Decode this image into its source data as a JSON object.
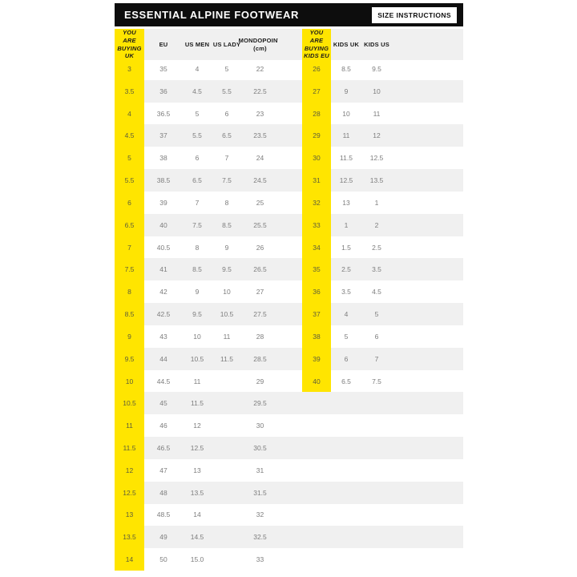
{
  "header": {
    "title": "ESSENTIAL ALPINE FOOTWEAR",
    "button_label": "SIZE INSTRUCTIONS"
  },
  "table": {
    "adult_header": {
      "uk": "YOU ARE BUYING UK",
      "eu": "EU",
      "us_men": "US MEN",
      "us_lady": "US LADY",
      "mondopoint": "MONDOPOINT",
      "mondopoint_unit": "(cm)"
    },
    "kids_header": {
      "kids_eu": "YOU ARE BUYING KIDS EU",
      "kids_uk": "KIDS UK",
      "kids_us": "KIDS US"
    },
    "rows": [
      {
        "uk": "3",
        "eu": "35",
        "us_men": "4",
        "us_lady": "5",
        "mondo": "22",
        "kids_eu": "26",
        "kids_uk": "8.5",
        "kids_us": "9.5"
      },
      {
        "uk": "3.5",
        "eu": "36",
        "us_men": "4.5",
        "us_lady": "5.5",
        "mondo": "22.5",
        "kids_eu": "27",
        "kids_uk": "9",
        "kids_us": "10"
      },
      {
        "uk": "4",
        "eu": "36.5",
        "us_men": "5",
        "us_lady": "6",
        "mondo": "23",
        "kids_eu": "28",
        "kids_uk": "10",
        "kids_us": "11"
      },
      {
        "uk": "4.5",
        "eu": "37",
        "us_men": "5.5",
        "us_lady": "6.5",
        "mondo": "23.5",
        "kids_eu": "29",
        "kids_uk": "11",
        "kids_us": "12"
      },
      {
        "uk": "5",
        "eu": "38",
        "us_men": "6",
        "us_lady": "7",
        "mondo": "24",
        "kids_eu": "30",
        "kids_uk": "11.5",
        "kids_us": "12.5"
      },
      {
        "uk": "5.5",
        "eu": "38.5",
        "us_men": "6.5",
        "us_lady": "7.5",
        "mondo": "24.5",
        "kids_eu": "31",
        "kids_uk": "12.5",
        "kids_us": "13.5"
      },
      {
        "uk": "6",
        "eu": "39",
        "us_men": "7",
        "us_lady": "8",
        "mondo": "25",
        "kids_eu": "32",
        "kids_uk": "13",
        "kids_us": "1"
      },
      {
        "uk": "6.5",
        "eu": "40",
        "us_men": "7.5",
        "us_lady": "8.5",
        "mondo": "25.5",
        "kids_eu": "33",
        "kids_uk": "1",
        "kids_us": "2"
      },
      {
        "uk": "7",
        "eu": "40.5",
        "us_men": "8",
        "us_lady": "9",
        "mondo": "26",
        "kids_eu": "34",
        "kids_uk": "1.5",
        "kids_us": "2.5"
      },
      {
        "uk": "7.5",
        "eu": "41",
        "us_men": "8.5",
        "us_lady": "9.5",
        "mondo": "26.5",
        "kids_eu": "35",
        "kids_uk": "2.5",
        "kids_us": "3.5"
      },
      {
        "uk": "8",
        "eu": "42",
        "us_men": "9",
        "us_lady": "10",
        "mondo": "27",
        "kids_eu": "36",
        "kids_uk": "3.5",
        "kids_us": "4.5"
      },
      {
        "uk": "8.5",
        "eu": "42.5",
        "us_men": "9.5",
        "us_lady": "10.5",
        "mondo": "27.5",
        "kids_eu": "37",
        "kids_uk": "4",
        "kids_us": "5"
      },
      {
        "uk": "9",
        "eu": "43",
        "us_men": "10",
        "us_lady": "11",
        "mondo": "28",
        "kids_eu": "38",
        "kids_uk": "5",
        "kids_us": "6"
      },
      {
        "uk": "9.5",
        "eu": "44",
        "us_men": "10.5",
        "us_lady": "11.5",
        "mondo": "28.5",
        "kids_eu": "39",
        "kids_uk": "6",
        "kids_us": "7"
      },
      {
        "uk": "10",
        "eu": "44.5",
        "us_men": "11",
        "us_lady": "",
        "mondo": "29",
        "kids_eu": "40",
        "kids_uk": "6.5",
        "kids_us": "7.5"
      },
      {
        "uk": "10.5",
        "eu": "45",
        "us_men": "11.5",
        "us_lady": "",
        "mondo": "29.5",
        "kids_eu": "",
        "kids_uk": "",
        "kids_us": ""
      },
      {
        "uk": "11",
        "eu": "46",
        "us_men": "12",
        "us_lady": "",
        "mondo": "30",
        "kids_eu": "",
        "kids_uk": "",
        "kids_us": ""
      },
      {
        "uk": "11.5",
        "eu": "46.5",
        "us_men": "12.5",
        "us_lady": "",
        "mondo": "30.5",
        "kids_eu": "",
        "kids_uk": "",
        "kids_us": ""
      },
      {
        "uk": "12",
        "eu": "47",
        "us_men": "13",
        "us_lady": "",
        "mondo": "31",
        "kids_eu": "",
        "kids_uk": "",
        "kids_us": ""
      },
      {
        "uk": "12.5",
        "eu": "48",
        "us_men": "13.5",
        "us_lady": "",
        "mondo": "31.5",
        "kids_eu": "",
        "kids_uk": "",
        "kids_us": ""
      },
      {
        "uk": "13",
        "eu": "48.5",
        "us_men": "14",
        "us_lady": "",
        "mondo": "32",
        "kids_eu": "",
        "kids_uk": "",
        "kids_us": ""
      },
      {
        "uk": "13.5",
        "eu": "49",
        "us_men": "14.5",
        "us_lady": "",
        "mondo": "32.5",
        "kids_eu": "",
        "kids_uk": "",
        "kids_us": ""
      },
      {
        "uk": "14",
        "eu": "50",
        "us_men": "15.0",
        "us_lady": "",
        "mondo": "33",
        "kids_eu": "",
        "kids_uk": "",
        "kids_us": ""
      }
    ]
  },
  "colors": {
    "yellow": "#ffe500",
    "bar": "#0d0d0d",
    "stripe": "#f0f0f0",
    "value_text": "#7d7d7d"
  }
}
